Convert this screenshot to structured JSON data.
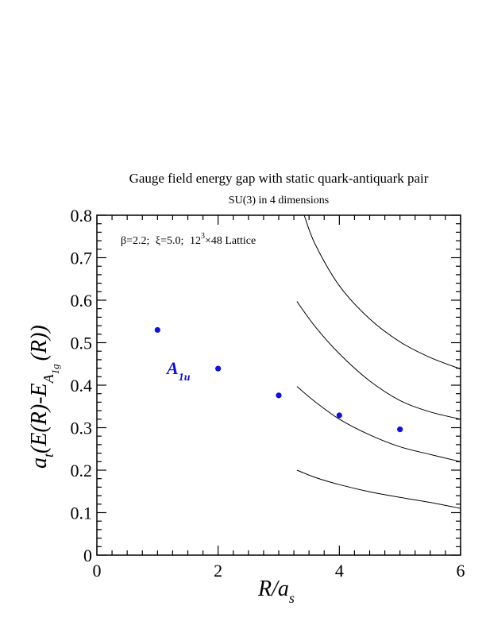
{
  "chart_data": {
    "type": "scatter",
    "title": "Gauge field energy gap with static quark-antiquark pair",
    "subtitle": "SU(3) in 4 dimensions",
    "xlabel": {
      "main": "R/a",
      "sub": "s"
    },
    "ylabel": {
      "pre": "a",
      "sub1": "t",
      "mid": "(E(R)-E",
      "sub2": "A",
      "sub3": "1g",
      "post": "(R))"
    },
    "xlim": [
      0,
      6
    ],
    "ylim": [
      0,
      0.8
    ],
    "xticks": [
      0,
      2,
      4,
      6
    ],
    "xtick_labels": [
      "0",
      "2",
      "4",
      "6"
    ],
    "yticks": [
      0,
      0.1,
      0.2,
      0.3,
      0.4,
      0.5,
      0.6,
      0.7,
      0.8
    ],
    "ytick_labels": [
      "0",
      "0.1",
      "0.2",
      "0.3",
      "0.4",
      "0.5",
      "0.6",
      "0.7",
      "0.8"
    ],
    "grid": false,
    "annotation": {
      "beta": "β=2.2;",
      "xi": "ξ=5.0;",
      "lattice": "12",
      "sup": "3",
      "lattice_rest": "×48 Lattice"
    },
    "series_label": {
      "main": "A",
      "sub": "1u"
    },
    "points": {
      "name": "A1u",
      "color": "#1010e0",
      "x": [
        1,
        2,
        3,
        4,
        5
      ],
      "y": [
        0.53,
        0.439,
        0.376,
        0.329,
        0.296
      ]
    },
    "curves": [
      {
        "x": [
          3.3,
          3.6,
          4.0,
          4.5,
          5.0,
          5.5,
          6.0
        ],
        "y": [
          0.2,
          0.183,
          0.166,
          0.149,
          0.136,
          0.124,
          0.11
        ]
      },
      {
        "x": [
          3.3,
          3.6,
          4.0,
          4.5,
          5.0,
          5.5,
          6.0
        ],
        "y": [
          0.397,
          0.361,
          0.32,
          0.283,
          0.255,
          0.237,
          0.22
        ]
      },
      {
        "x": [
          3.3,
          3.6,
          4.0,
          4.5,
          5.0,
          5.5,
          6.0
        ],
        "y": [
          0.597,
          0.538,
          0.474,
          0.41,
          0.364,
          0.337,
          0.32
        ]
      },
      {
        "x": [
          3.42,
          3.6,
          4.0,
          4.5,
          5.0,
          5.5,
          6.0
        ],
        "y": [
          0.8,
          0.732,
          0.634,
          0.556,
          0.502,
          0.465,
          0.438
        ]
      }
    ]
  }
}
